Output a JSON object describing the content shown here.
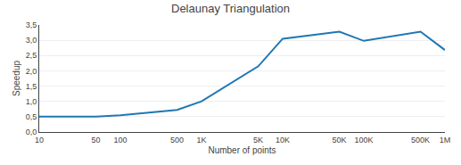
{
  "chart_data": {
    "type": "line",
    "title": "Delaunay Triangulation",
    "xlabel": "Number of points",
    "ylabel": "Speedup",
    "x": [
      10,
      50,
      100,
      500,
      1000,
      5000,
      10000,
      50000,
      100000,
      500000,
      1000000
    ],
    "values": [
      0.5,
      0.5,
      0.55,
      0.72,
      1.0,
      2.15,
      3.05,
      3.28,
      2.98,
      3.28,
      2.68
    ],
    "log": "x",
    "xlim": [
      10,
      1000000
    ],
    "xticks": [
      10,
      50,
      100,
      500,
      {
        "value": 1000,
        "label": "1K"
      },
      {
        "value": 5000,
        "label": "5K"
      },
      {
        "value": 10000,
        "label": "10K"
      },
      {
        "value": 50000,
        "label": "50K"
      },
      {
        "value": 100000,
        "label": "100K"
      },
      {
        "value": 500000,
        "label": "500K"
      },
      {
        "value": 1000000,
        "label": "1M"
      }
    ],
    "ylim": [
      0.0,
      3.5
    ],
    "yticks": [
      {
        "value": 0.0,
        "label": "0,0"
      },
      {
        "value": 0.5,
        "label": "0,5"
      },
      {
        "value": 1.0,
        "label": "1,0"
      },
      {
        "value": 1.5,
        "label": "1,5"
      },
      {
        "value": 2.0,
        "label": "2,0"
      },
      {
        "value": 2.5,
        "label": "2,5"
      },
      {
        "value": 3.0,
        "label": "3,0"
      },
      {
        "value": 3.5,
        "label": "3,5"
      }
    ],
    "grid": true
  }
}
